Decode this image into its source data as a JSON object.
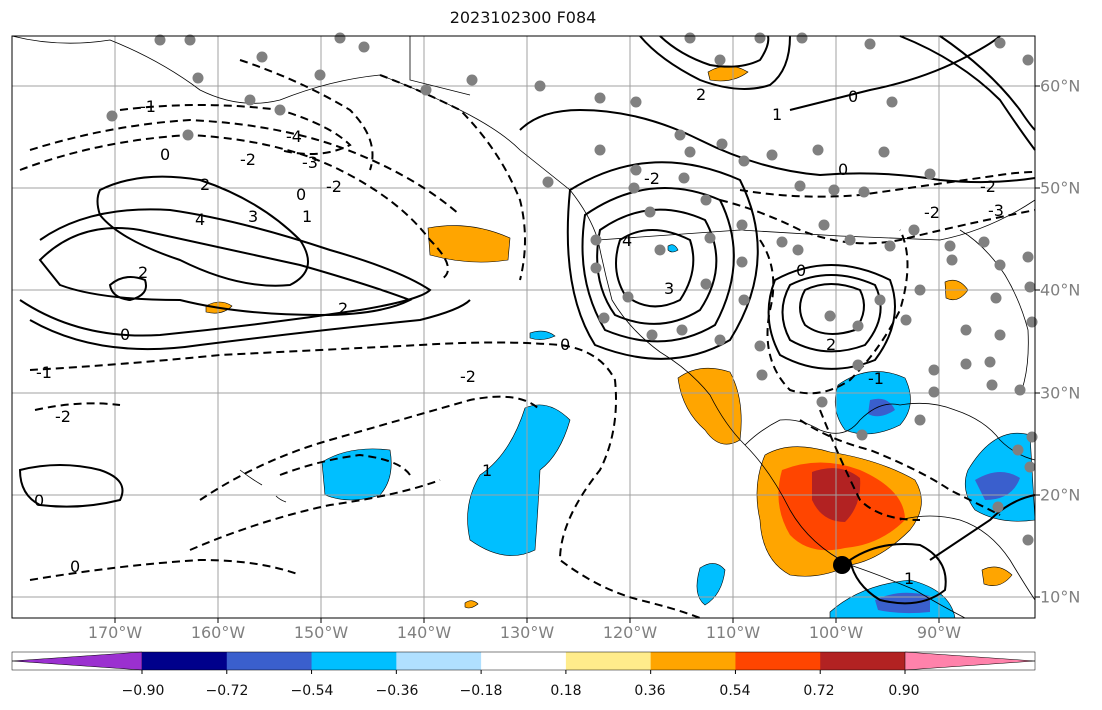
{
  "title": "2023102300 F084",
  "lon_labels": [
    "170°W",
    "160°W",
    "150°W",
    "140°W",
    "130°W",
    "120°W",
    "110°W",
    "100°W",
    "90°W"
  ],
  "lat_labels": [
    "60°N",
    "50°N",
    "40°N",
    "30°N",
    "20°N",
    "10°N"
  ],
  "contour_labels": [
    "2",
    "4",
    "3",
    "2",
    "0",
    "1",
    "-2",
    "-3",
    "-4",
    "0",
    "-2",
    "-1",
    "0",
    "-2",
    "0",
    "-1",
    "-2",
    "4",
    "3",
    "2",
    "0",
    "-2",
    "1",
    "2",
    "0",
    "-2",
    "-3",
    "0",
    "2",
    "-1",
    "0",
    "-2",
    "1",
    "0",
    "1"
  ],
  "colorbar": {
    "tick_labels": [
      "−0.90",
      "−0.72",
      "−0.54",
      "−0.36",
      "−0.18",
      "0.18",
      "0.36",
      "0.54",
      "0.72",
      "0.90"
    ],
    "colors": [
      "#9b30d0",
      "#00008b",
      "#3a5fcd",
      "#00bfff",
      "#b0e0ff",
      "#ffffff",
      "#ffec8b",
      "#ffa500",
      "#ff4500",
      "#b22222",
      "#ff82ab"
    ]
  }
}
